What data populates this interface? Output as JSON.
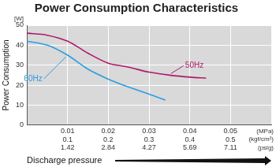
{
  "chart_data": {
    "type": "line",
    "title": "Power Consumption Characteristics",
    "x_label": "Discharge pressure",
    "y_label": "Power Consumption",
    "y_unit": "[W]",
    "x_unit_labels": [
      "(MPa)",
      "(kgf/cm²)",
      "(psig)"
    ],
    "series": [
      {
        "name": "50Hz",
        "color": "#b0186a",
        "x": [
          0,
          0.005,
          0.01,
          0.015,
          0.02,
          0.025,
          0.03,
          0.035,
          0.04,
          0.044
        ],
        "values": [
          46,
          45,
          42,
          36,
          31,
          29,
          26.5,
          25,
          24,
          23.5
        ]
      },
      {
        "name": "60Hz",
        "color": "#2a9ee0",
        "x": [
          0,
          0.005,
          0.01,
          0.015,
          0.02,
          0.025,
          0.03,
          0.034
        ],
        "values": [
          42,
          40,
          35,
          28,
          23,
          19,
          15.5,
          12.5
        ]
      }
    ],
    "xlim": [
      0,
      0.06
    ],
    "xticks": [
      {
        "value": 0.01,
        "label": [
          "0.01",
          "0.1",
          "1.42"
        ]
      },
      {
        "value": 0.02,
        "label": [
          "0.02",
          "0.2",
          "2.84"
        ]
      },
      {
        "value": 0.03,
        "label": [
          "0.03",
          "0.3",
          "4.27"
        ]
      },
      {
        "value": 0.04,
        "label": [
          "0.04",
          "0.4",
          "5.69"
        ]
      },
      {
        "value": 0.05,
        "label": [
          "0.05",
          "0.5",
          "7.11"
        ]
      }
    ],
    "ylim": [
      0,
      50
    ],
    "yticks": [
      0,
      10,
      20,
      30,
      40,
      50
    ],
    "grid": true
  }
}
